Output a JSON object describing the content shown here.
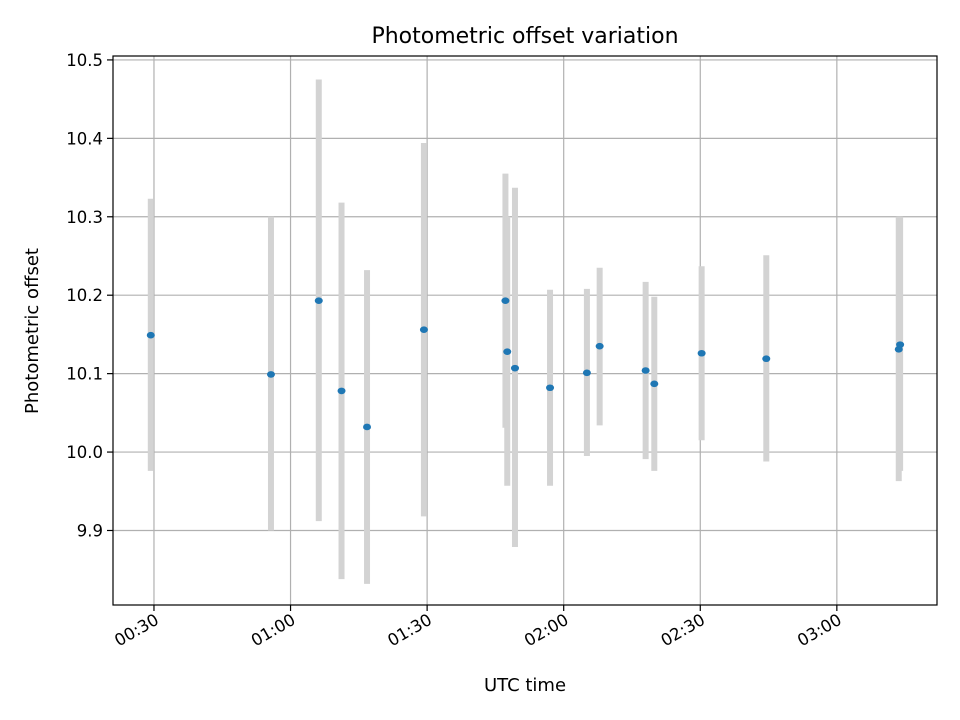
{
  "chart_data": {
    "type": "scatter",
    "title": "Photometric offset variation",
    "xlabel": "UTC time",
    "ylabel": "Photometric offset",
    "x_ticks": [
      "00:30",
      "01:00",
      "01:30",
      "02:00",
      "02:30",
      "03:00"
    ],
    "x_tick_values_min": [
      30,
      60,
      90,
      120,
      150,
      180
    ],
    "xlim_min": [
      21,
      202
    ],
    "y_ticks": [
      "9.9",
      "10.0",
      "10.1",
      "10.2",
      "10.3",
      "10.4",
      "10.5"
    ],
    "y_tick_values": [
      9.9,
      10.0,
      10.1,
      10.2,
      10.3,
      10.4,
      10.5
    ],
    "ylim": [
      9.805,
      10.505
    ],
    "grid": true,
    "colors": {
      "point": "#1f77b4",
      "errorbar": "#d3d3d3"
    },
    "points": [
      {
        "t": 29.3,
        "y": 10.149,
        "lo": 9.976,
        "hi": 10.323
      },
      {
        "t": 55.7,
        "y": 10.099,
        "lo": 9.9,
        "hi": 10.3
      },
      {
        "t": 66.2,
        "y": 10.193,
        "lo": 9.912,
        "hi": 10.475
      },
      {
        "t": 71.2,
        "y": 10.078,
        "lo": 9.838,
        "hi": 10.318
      },
      {
        "t": 76.8,
        "y": 10.032,
        "lo": 9.832,
        "hi": 10.232
      },
      {
        "t": 89.3,
        "y": 10.156,
        "lo": 9.918,
        "hi": 10.394
      },
      {
        "t": 107.2,
        "y": 10.193,
        "lo": 10.031,
        "hi": 10.355
      },
      {
        "t": 107.6,
        "y": 10.128,
        "lo": 9.957,
        "hi": 10.3
      },
      {
        "t": 109.3,
        "y": 10.107,
        "lo": 9.879,
        "hi": 10.337
      },
      {
        "t": 117.0,
        "y": 10.082,
        "lo": 9.957,
        "hi": 10.207
      },
      {
        "t": 125.1,
        "y": 10.101,
        "lo": 9.995,
        "hi": 10.208
      },
      {
        "t": 127.9,
        "y": 10.135,
        "lo": 10.034,
        "hi": 10.235
      },
      {
        "t": 138.0,
        "y": 10.104,
        "lo": 9.991,
        "hi": 10.217
      },
      {
        "t": 139.9,
        "y": 10.087,
        "lo": 9.976,
        "hi": 10.198
      },
      {
        "t": 150.3,
        "y": 10.126,
        "lo": 10.015,
        "hi": 10.237
      },
      {
        "t": 164.5,
        "y": 10.119,
        "lo": 9.988,
        "hi": 10.251
      },
      {
        "t": 193.6,
        "y": 10.131,
        "lo": 9.963,
        "hi": 10.3
      },
      {
        "t": 193.9,
        "y": 10.137,
        "lo": 9.976,
        "hi": 10.3
      }
    ]
  }
}
